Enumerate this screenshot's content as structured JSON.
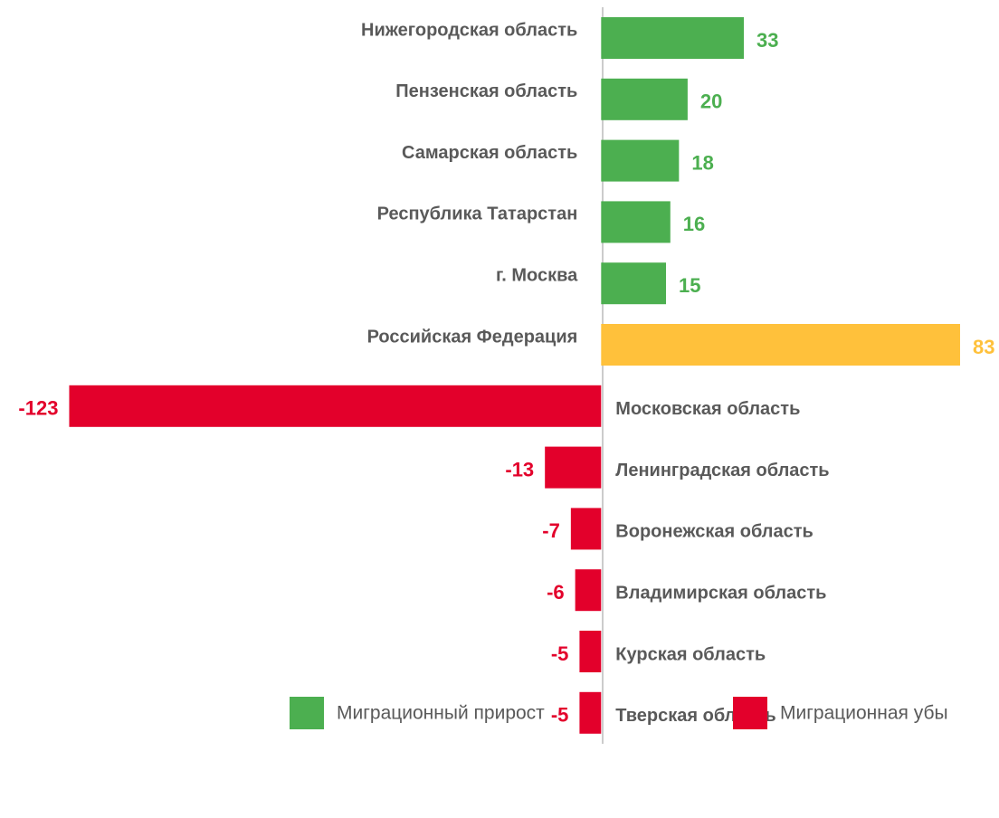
{
  "chart_data": {
    "type": "hbar",
    "categories": [
      "Нижегородская область",
      "Пензенская область",
      "Самарская область",
      "Республика Татарстан",
      "г. Москва",
      "Российская Федерация",
      "Московская область",
      "Ленинградская область",
      "Воронежская область",
      "Владимирская область",
      "Курская область",
      "Тверская область"
    ],
    "values": [
      33,
      20,
      18,
      16,
      15,
      83,
      -123,
      -13,
      -7,
      -6,
      -5,
      -5
    ],
    "colors": [
      "#4caf50",
      "#4caf50",
      "#4caf50",
      "#4caf50",
      "#4caf50",
      "#ffc13b",
      "#e3002b",
      "#e3002b",
      "#e3002b",
      "#e3002b",
      "#e3002b",
      "#e3002b"
    ],
    "xlim": [
      -139,
      92
    ],
    "legend": [
      {
        "name": "Миграционный прирост",
        "color": "#4caf50"
      },
      {
        "name": "Миграционная убы",
        "color": "#e3002b"
      }
    ]
  }
}
